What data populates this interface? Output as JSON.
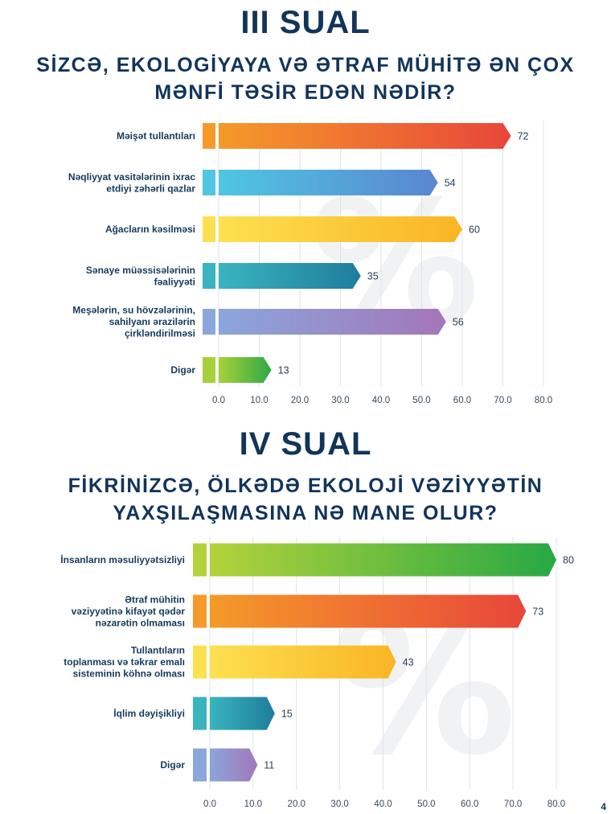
{
  "chart_data": [
    {
      "type": "bar",
      "orientation": "horizontal",
      "section": "III SUAL",
      "title": "SİZCƏ, EKOLOGİYAYA VƏ ƏTRAF MÜHİTƏ ƏN ÇOX MƏNFİ TƏSİR EDƏN NƏDİR?",
      "title_lines": [
        "SİZCƏ, EKOLOGİYAYA VƏ ƏTRAF MÜHİTƏ ƏN ÇOX",
        "MƏNFİ TƏSİR EDƏN NƏDİR?"
      ],
      "categories": [
        [
          "Məişət tullantıları"
        ],
        [
          "Nəqliyyat vasitələrinin ixrac",
          "etdiyi zəhərli qazlar"
        ],
        [
          "Ağacların kəsilməsi"
        ],
        [
          "Sənaye müəssisələrinin",
          "fəaliyyəti"
        ],
        [
          "Meşələrin, su hövzələrinin,",
          "sahilyanı ərazilərin",
          "çirkləndirilməsi"
        ],
        [
          "Digər"
        ]
      ],
      "values": [
        72,
        54,
        60,
        35,
        56,
        13
      ],
      "value_labels": [
        "72",
        "54",
        "60",
        "35",
        "56",
        "13"
      ],
      "colors": [
        [
          "#f59a2a",
          "#e8463a"
        ],
        [
          "#4fc6e2",
          "#5a86cf"
        ],
        [
          "#fde050",
          "#f9b524"
        ],
        [
          "#3ab4bf",
          "#1f7d9c"
        ],
        [
          "#8aa6dc",
          "#a476b8"
        ],
        [
          "#a6d13a",
          "#2fa844"
        ]
      ],
      "xlim": [
        0,
        80
      ],
      "xticks": [
        "0.0",
        "10.0",
        "20.0",
        "30.0",
        "40.0",
        "50.0",
        "60.0",
        "70.0",
        "80.0"
      ],
      "watermark": "%",
      "grid": true
    },
    {
      "type": "bar",
      "orientation": "horizontal",
      "section": "IV SUAL",
      "title": "FİKRİNİZCƏ, ÖLKƏDƏ EKOLOJİ VƏZİYYƏTİN YAXŞILAŞMASINA NƏ MANE OLUR?",
      "title_lines": [
        "FİKRİNİZCƏ, ÖLKƏDƏ EKOLOJİ VƏZİYYƏTİN",
        "YAXŞILAŞMASINA NƏ MANE OLUR?"
      ],
      "categories": [
        [
          "İnsanların məsuliyyətsizliyi"
        ],
        [
          "Ətraf mühitin",
          "vəziyyətinə kifayət qədər",
          "nəzarətin olmaması"
        ],
        [
          "Tullantıların",
          "toplanması və təkrar emalı",
          "sisteminin köhnə olması"
        ],
        [
          "İqlim dəyişikliyi"
        ],
        [
          "Digər"
        ]
      ],
      "values": [
        80,
        73,
        43,
        15,
        11
      ],
      "value_labels": [
        "80",
        "73",
        "43",
        "15",
        "11"
      ],
      "colors": [
        [
          "#b3d23a",
          "#28a844"
        ],
        [
          "#f59a2a",
          "#e8463a"
        ],
        [
          "#fde050",
          "#f9b524"
        ],
        [
          "#3ab4bf",
          "#1f7d9c"
        ],
        [
          "#8aa6dc",
          "#a476b8"
        ]
      ],
      "xlim": [
        0,
        80
      ],
      "xticks": [
        "0.0",
        "10.0",
        "20.0",
        "30.0",
        "40.0",
        "50.0",
        "60.0",
        "70.0",
        "80.0"
      ],
      "watermark": "%",
      "grid": true
    }
  ],
  "page": {
    "corner_mark": "4"
  }
}
